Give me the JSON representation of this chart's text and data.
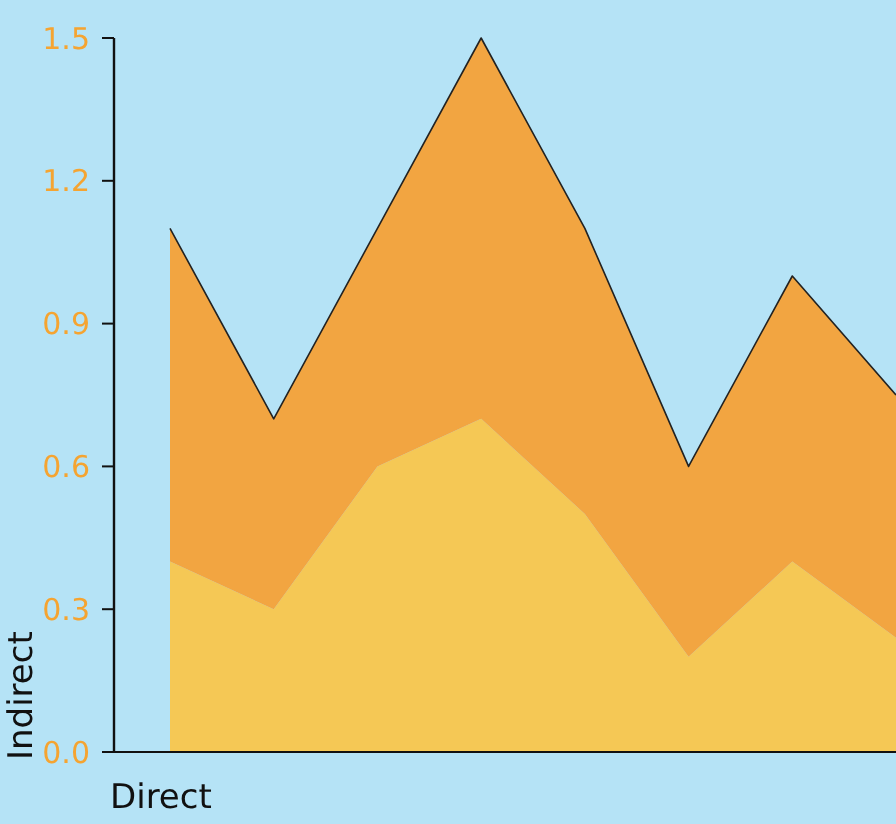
{
  "chart_data": {
    "type": "area",
    "stacked": true,
    "xlabel": "Direct",
    "ylabel": "Indirect",
    "categories": [
      null,
      null,
      null,
      null,
      null,
      null,
      null,
      null
    ],
    "series": [
      {
        "color": "#f5c855",
        "values": [
          0.4,
          0.3,
          0.6,
          0.7,
          0.5,
          0.2,
          0.4,
          0.24
        ]
      },
      {
        "color": "#f2a541",
        "values": [
          0.7,
          0.4,
          0.5,
          0.8,
          0.6,
          0.4,
          0.6,
          0.51
        ]
      }
    ],
    "ylim": [
      0,
      1.5
    ],
    "yticks": [
      {
        "value": 0,
        "label": "0.0"
      },
      0.3,
      0.6,
      0.9,
      1.2,
      1.5
    ]
  }
}
